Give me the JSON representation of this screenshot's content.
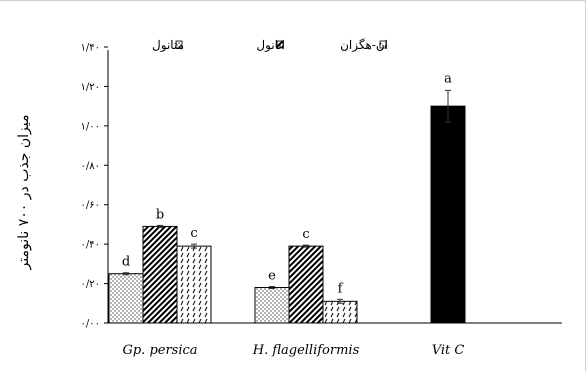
{
  "chart_data": {
    "type": "bar",
    "title": "",
    "xlabel": "",
    "ylabel": "میزان جذب در ۷۰۰ نانومتر",
    "ylim": [
      0,
      1.4
    ],
    "yticks": [
      0,
      0.2,
      0.4,
      0.6,
      0.8,
      1.0,
      1.2,
      1.4
    ],
    "ytick_labels": [
      "۰/۰۰",
      "۰/۲۰",
      "۰/۴۰",
      "۰/۶۰",
      "۰/۸۰",
      "۱/۰۰",
      "۱/۲۰",
      "۱/۴۰"
    ],
    "grid": false,
    "legend_position": "top",
    "categories": [
      "Gp. persica",
      "H. flagelliformis",
      "Vit C"
    ],
    "series": [
      {
        "name": "متانول",
        "pattern": "dots",
        "values": [
          0.25,
          0.18,
          null
        ],
        "errors": [
          0.005,
          0.005,
          null
        ],
        "labels": [
          "d",
          "e",
          null
        ]
      },
      {
        "name": "اتانول",
        "pattern": "diagonal",
        "values": [
          0.49,
          0.39,
          null
        ],
        "errors": [
          0.005,
          0.005,
          null
        ],
        "labels": [
          "b",
          "c",
          null
        ]
      },
      {
        "name": "ان-هگزان",
        "pattern": "dashes",
        "values": [
          0.39,
          0.11,
          null
        ],
        "errors": [
          0.01,
          0.01,
          null
        ],
        "labels": [
          "c",
          "f",
          null
        ]
      }
    ],
    "reference": {
      "category": "Vit C",
      "value": 1.1,
      "error": 0.08,
      "label": "a",
      "color": "#000000"
    }
  }
}
